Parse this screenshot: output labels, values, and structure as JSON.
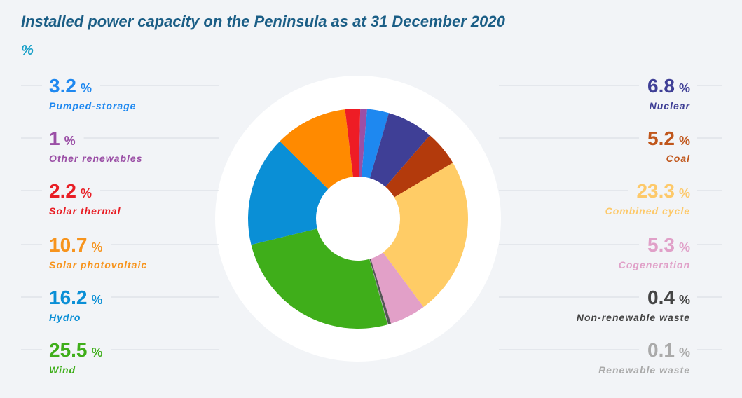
{
  "chart_data": {
    "type": "donut",
    "title": "Installed power capacity on the Peninsula as at 31 December 2020",
    "subtitle": "%",
    "unit": "%",
    "categories": [
      "Other renewables",
      "Pumped-storage",
      "Nuclear",
      "Coal",
      "Combined cycle",
      "Cogeneration",
      "Non-renewable waste",
      "Renewable waste",
      "Wind",
      "Hydro",
      "Solar photovoltaic",
      "Solar thermal"
    ],
    "values": [
      1,
      3.2,
      6.8,
      5.2,
      23.3,
      5.3,
      0.4,
      0.1,
      25.5,
      16.2,
      10.7,
      2.2
    ],
    "colors": [
      "#9b4fa6",
      "#1e88f0",
      "#3f3f96",
      "#b33a0c",
      "#ffcc66",
      "#e2a0c8",
      "#555555",
      "#aaaaaa",
      "#3fae1a",
      "#0a8fd6",
      "#ff8a00",
      "#ee1c25"
    ],
    "label_colors": [
      "#9b4fa6",
      "#1e88f0",
      "#3f3f96",
      "#c0561b",
      "#fdc96a",
      "#e0a0c8",
      "#444444",
      "#aaaaaa",
      "#3fae1a",
      "#0a8fd6",
      "#f7941d",
      "#e81e25"
    ]
  }
}
